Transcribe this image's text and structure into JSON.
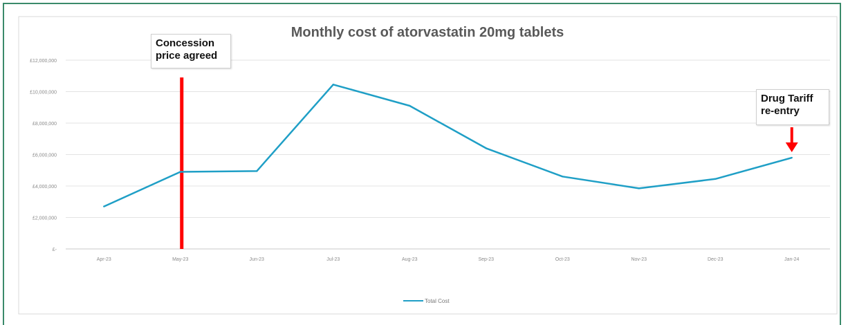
{
  "chart_data": {
    "type": "line",
    "title": "Monthly cost of atorvastatin 20mg tablets",
    "categories": [
      "Apr-23",
      "May-23",
      "Jun-23",
      "Jul-23",
      "Aug-23",
      "Sep-23",
      "Oct-23",
      "Nov-23",
      "Dec-23",
      "Jan-24"
    ],
    "series": [
      {
        "name": "Total Cost",
        "color": "#1f9fc6",
        "values": [
          2700000,
          4900000,
          4950000,
          10450000,
          9100000,
          6400000,
          4600000,
          3850000,
          4450000,
          5800000
        ]
      }
    ],
    "y_ticks": [
      "£-",
      "£2,000,000",
      "£4,000,000",
      "£6,000,000",
      "£8,000,000",
      "£10,000,000",
      "£12,000,000"
    ],
    "ylim": [
      0,
      12000000
    ],
    "grid": true,
    "legend": "bottom",
    "xlabel": "",
    "ylabel": "",
    "annotations": [
      {
        "lines": [
          "Concession",
          "price agreed"
        ],
        "at": "May-23",
        "marker": "vertical-line",
        "marker_top_value": 10900000,
        "color": "#ff0000"
      },
      {
        "lines": [
          "Drug Tariff",
          "re-entry"
        ],
        "at": "Jan-24",
        "marker": "down-arrow",
        "color": "#ff0000"
      }
    ]
  }
}
